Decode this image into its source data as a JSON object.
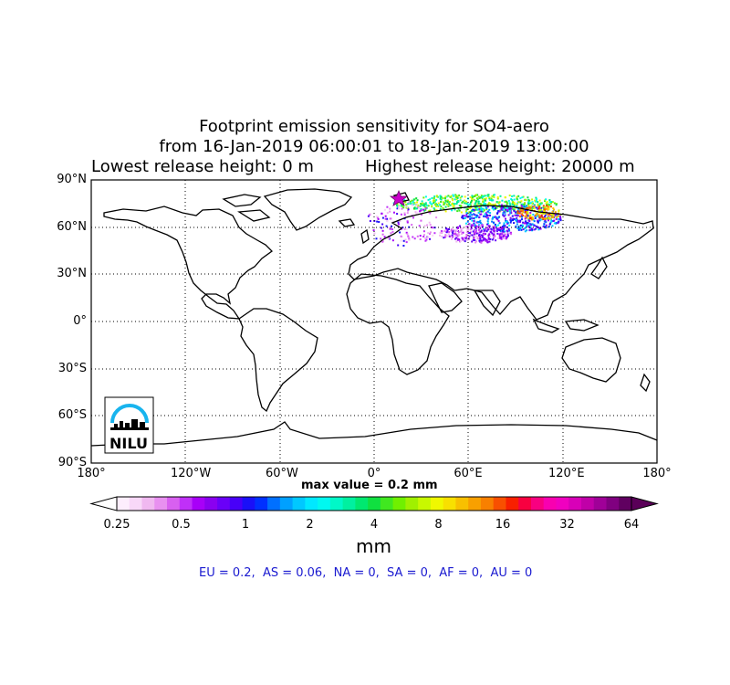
{
  "title": {
    "line1": "Footprint emission sensitivity for SO4-aero",
    "line2": "from 16-Jan-2019 06:00:01 to 18-Jan-2019 13:00:00",
    "lowest": "Lowest release height: 0 m",
    "highest": "Highest release height: 20000 m"
  },
  "lat_labels": [
    "90°N",
    "60°N",
    "30°N",
    "0°",
    "30°S",
    "60°S",
    "90°S"
  ],
  "lon_labels": [
    "180°",
    "120°W",
    "60°W",
    "0°",
    "60°E",
    "120°E",
    "180°"
  ],
  "logo": {
    "text": "NILU"
  },
  "max_value": "max value = 0.2 mm",
  "colorbar": {
    "ticks": [
      "0.25",
      "0.5",
      "1",
      "2",
      "4",
      "8",
      "16",
      "32",
      "64"
    ],
    "unit": "mm",
    "colors": [
      "#fdeefd",
      "#f8d8f8",
      "#f0b8f0",
      "#e890f0",
      "#d860f0",
      "#c030f8",
      "#a800f8",
      "#8a00f0",
      "#6a00f8",
      "#4800f8",
      "#1a10f8",
      "#0030ff",
      "#0070ff",
      "#00a0ff",
      "#00c8ff",
      "#00e8ff",
      "#00f8f0",
      "#00f8c8",
      "#00f0a0",
      "#00e870",
      "#10e040",
      "#40e820",
      "#70f000",
      "#a0f000",
      "#c8f800",
      "#f0f800",
      "#f8e000",
      "#f8c000",
      "#f8a000",
      "#f88000",
      "#f85000",
      "#f82000",
      "#f80040",
      "#f80080",
      "#f800b0",
      "#f000c0",
      "#d800b8",
      "#c000a8",
      "#a00098",
      "#800080",
      "#600060"
    ]
  },
  "regions": "EU = 0.2,  AS = 0.06,  NA = 0,  SA = 0,  AF = 0,  AU = 0",
  "release_site": {
    "lon": 15.6,
    "lat": 78.9
  }
}
